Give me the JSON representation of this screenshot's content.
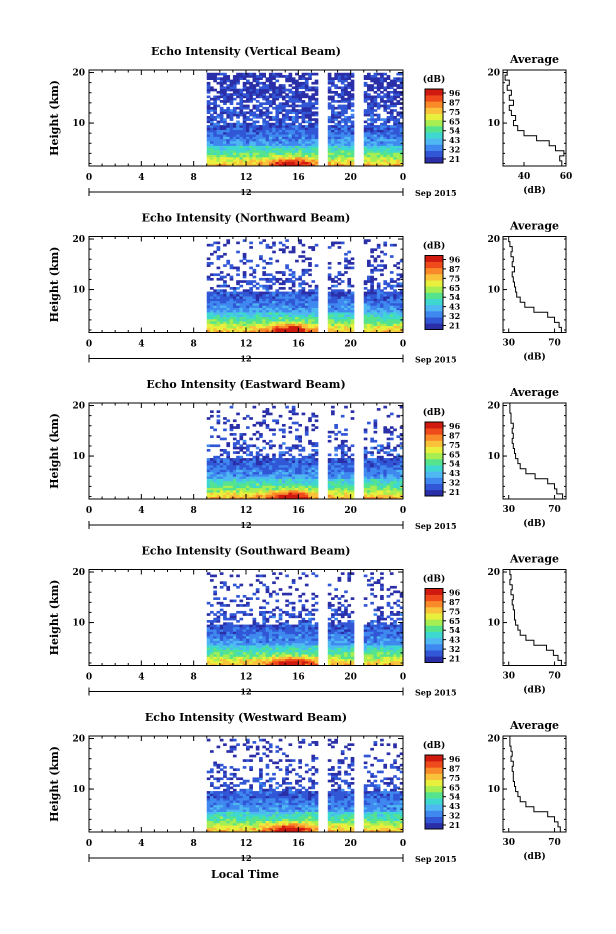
{
  "chart_data": {
    "type": "heatmap",
    "colorbar": {
      "unit": "(dB)",
      "colors": [
        "#2a2fa8",
        "#3157d6",
        "#3f88f0",
        "#4fb7f2",
        "#3fd8d0",
        "#55e38e",
        "#a6ee52",
        "#e8ef3c",
        "#f9c23a",
        "#f98a2a",
        "#ef4a1c",
        "#d01a10"
      ]
    },
    "x_axis": {
      "label": "Local Time",
      "ticks": [
        "0",
        "4",
        "8",
        "12",
        "16",
        "20",
        "0"
      ],
      "date_tick": "12",
      "date_label": "Sep 2015",
      "range": [
        0,
        24
      ]
    },
    "y_axis": {
      "label": "Height (km)",
      "ticks": [
        "20",
        "10"
      ],
      "range": [
        1.5,
        20.5
      ]
    },
    "data_start_hour": 9.0,
    "gaps_hours": [
      [
        17.7,
        18.1
      ],
      [
        20.3,
        21.0
      ]
    ],
    "panels": [
      {
        "title": "Echo Intensity (Vertical Beam)",
        "colorbar_ticks": [
          "96",
          "87",
          "75",
          "65",
          "54",
          "43",
          "32",
          "21"
        ],
        "average": {
          "title": "Average",
          "xlabel": "(dB)",
          "xticks": [
            "40",
            "60"
          ],
          "xrange": [
            30,
            60
          ],
          "profile_km": [
            2,
            3,
            4,
            5,
            6,
            7,
            8,
            9,
            10,
            11,
            12,
            13,
            14,
            15,
            16,
            17,
            18,
            19,
            20
          ],
          "profile_db": [
            58,
            57,
            59,
            55,
            52,
            46,
            40,
            37,
            35,
            36,
            34,
            33,
            35,
            33,
            34,
            32,
            33,
            31,
            32
          ]
        }
      },
      {
        "title": "Echo Intensity (Northward Beam)",
        "colorbar_ticks": [
          "96",
          "87",
          "75",
          "65",
          "54",
          "43",
          "32",
          "21"
        ],
        "average": {
          "title": "Average",
          "xlabel": "(dB)",
          "xticks": [
            "30",
            "70"
          ],
          "xrange": [
            25,
            80
          ],
          "profile_km": [
            2,
            3,
            4,
            5,
            6,
            7,
            8,
            9,
            10,
            11,
            12,
            13,
            14,
            15,
            16,
            17,
            18,
            19,
            20
          ],
          "profile_db": [
            76,
            74,
            70,
            64,
            52,
            44,
            40,
            37,
            36,
            35,
            34,
            33,
            35,
            33,
            34,
            32,
            33,
            31,
            30
          ]
        }
      },
      {
        "title": "Echo Intensity (Eastward Beam)",
        "colorbar_ticks": [
          "96",
          "87",
          "75",
          "65",
          "54",
          "43",
          "32",
          "21"
        ],
        "average": {
          "title": "Average",
          "xlabel": "(dB)",
          "xticks": [
            "30",
            "70"
          ],
          "xrange": [
            25,
            80
          ],
          "profile_km": [
            2,
            3,
            4,
            5,
            6,
            7,
            8,
            9,
            10,
            11,
            12,
            13,
            14,
            15,
            16,
            17,
            18,
            19,
            20
          ],
          "profile_db": [
            77,
            72,
            70,
            64,
            53,
            45,
            40,
            38,
            36,
            35,
            34,
            33,
            34,
            33,
            34,
            32,
            32,
            31,
            31
          ]
        }
      },
      {
        "title": "Echo Intensity (Southward Beam)",
        "colorbar_ticks": [
          "96",
          "87",
          "75",
          "65",
          "54",
          "43",
          "32",
          "21"
        ],
        "average": {
          "title": "Average",
          "xlabel": "(dB)",
          "xticks": [
            "30",
            "70"
          ],
          "xrange": [
            25,
            80
          ],
          "profile_km": [
            2,
            3,
            4,
            5,
            6,
            7,
            8,
            9,
            10,
            11,
            12,
            13,
            14,
            15,
            16,
            17,
            18,
            19,
            20
          ],
          "profile_db": [
            76,
            73,
            69,
            63,
            52,
            45,
            40,
            38,
            36,
            35,
            35,
            34,
            33,
            34,
            32,
            33,
            31,
            32,
            31
          ]
        }
      },
      {
        "title": "Echo Intensity (Westward Beam)",
        "colorbar_ticks": [
          "96",
          "87",
          "75",
          "65",
          "54",
          "43",
          "32",
          "21"
        ],
        "average": {
          "title": "Average",
          "xlabel": "(dB)",
          "xticks": [
            "30",
            "70"
          ],
          "xrange": [
            25,
            80
          ],
          "profile_km": [
            2,
            3,
            4,
            5,
            6,
            7,
            8,
            9,
            10,
            11,
            12,
            13,
            14,
            15,
            16,
            17,
            18,
            19,
            20
          ],
          "profile_db": [
            75,
            73,
            70,
            64,
            52,
            45,
            40,
            38,
            36,
            35,
            34,
            34,
            33,
            34,
            32,
            33,
            32,
            31,
            31
          ]
        }
      }
    ]
  }
}
